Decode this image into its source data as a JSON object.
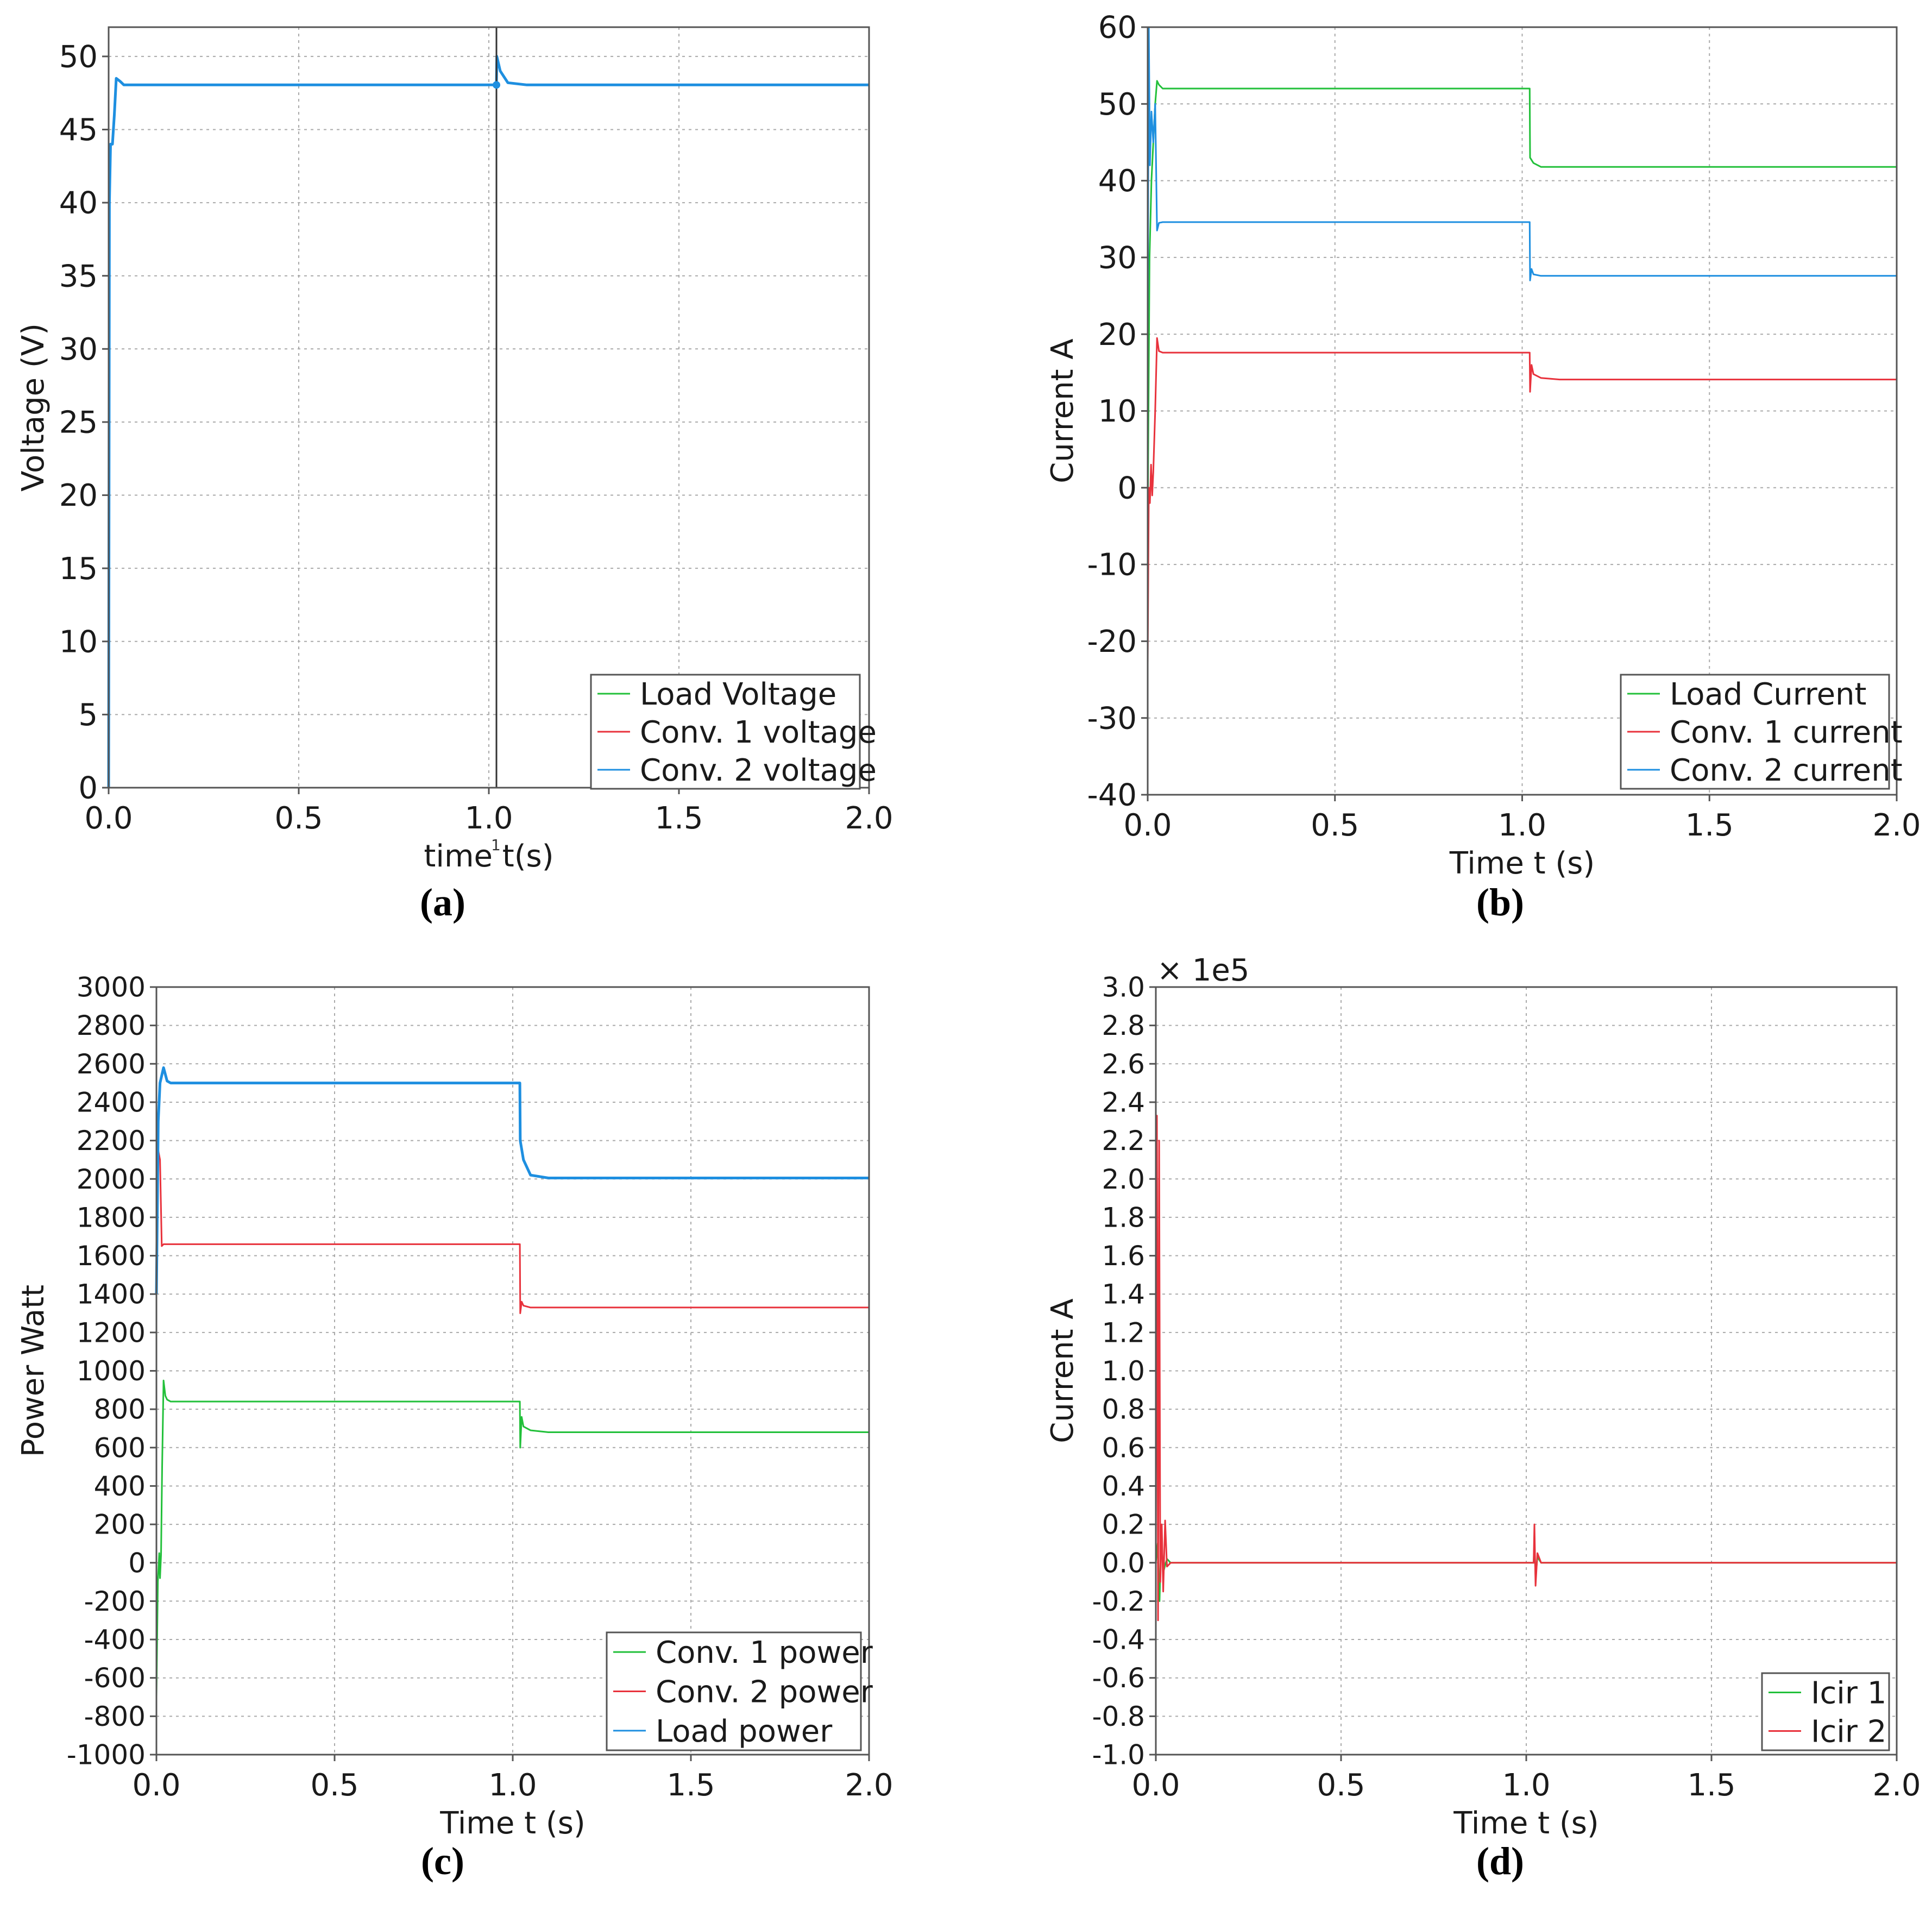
{
  "chart_data": [
    {
      "id": "a",
      "type": "line",
      "caption": "(a)",
      "xlabel": "time t(s)",
      "ylabel": "Voltage (V)",
      "xlim": [
        0,
        2
      ],
      "ylim": [
        0,
        52
      ],
      "xticks": [
        "0.0",
        "0.5",
        "1.0",
        "1.5",
        "2.0"
      ],
      "xtick_values": [
        0,
        0.5,
        1.0,
        1.5,
        2.0
      ],
      "yticks": [
        "0",
        "5",
        "10",
        "15",
        "20",
        "25",
        "30",
        "35",
        "40",
        "45",
        "50"
      ],
      "ytick_values": [
        0,
        5,
        10,
        15,
        20,
        25,
        30,
        35,
        40,
        45,
        50
      ],
      "grid": true,
      "legend_position": "bottom-right",
      "cursor_x": 1.02,
      "cursor_label": "1",
      "series": [
        {
          "name": "Load Voltage",
          "color": "#22c03a",
          "width": 3,
          "points": [
            [
              0,
              0
            ],
            [
              0.002,
              40
            ],
            [
              0.005,
              44
            ],
            [
              0.01,
              44
            ],
            [
              0.015,
              46
            ],
            [
              0.02,
              48.5
            ],
            [
              0.03,
              48.3
            ],
            [
              0.04,
              48.05
            ],
            [
              1.02,
              48.05
            ],
            [
              1.021,
              50
            ],
            [
              1.03,
              49
            ],
            [
              1.05,
              48.2
            ],
            [
              1.1,
              48.05
            ],
            [
              2,
              48.05
            ]
          ]
        },
        {
          "name": "Conv. 1 voltage",
          "color": "#e8323c",
          "width": 3,
          "points": [
            [
              0,
              0
            ],
            [
              0.002,
              40
            ],
            [
              0.005,
              44
            ],
            [
              0.01,
              44
            ],
            [
              0.015,
              46
            ],
            [
              0.02,
              48.5
            ],
            [
              0.03,
              48.3
            ],
            [
              0.04,
              48.05
            ],
            [
              1.02,
              48.05
            ],
            [
              1.021,
              50
            ],
            [
              1.03,
              49
            ],
            [
              1.05,
              48.2
            ],
            [
              1.1,
              48.05
            ],
            [
              2,
              48.05
            ]
          ]
        },
        {
          "name": "Conv. 2 voltage",
          "color": "#1e8fe0",
          "width": 5,
          "points": [
            [
              0,
              0
            ],
            [
              0.002,
              40
            ],
            [
              0.005,
              44
            ],
            [
              0.01,
              44
            ],
            [
              0.015,
              46
            ],
            [
              0.02,
              48.5
            ],
            [
              0.03,
              48.3
            ],
            [
              0.04,
              48.05
            ],
            [
              1.02,
              48.05
            ],
            [
              1.021,
              50
            ],
            [
              1.03,
              49
            ],
            [
              1.05,
              48.2
            ],
            [
              1.1,
              48.05
            ],
            [
              2,
              48.05
            ]
          ]
        }
      ]
    },
    {
      "id": "b",
      "type": "line",
      "caption": "(b)",
      "xlabel": "Time t (s)",
      "ylabel": "Current A",
      "xlim": [
        0,
        2
      ],
      "ylim": [
        -40,
        60
      ],
      "xticks": [
        "0.0",
        "0.5",
        "1.0",
        "1.5",
        "2.0"
      ],
      "xtick_values": [
        0,
        0.5,
        1.0,
        1.5,
        2.0
      ],
      "yticks": [
        "-40",
        "-30",
        "-20",
        "-10",
        "0",
        "10",
        "20",
        "30",
        "40",
        "50",
        "60"
      ],
      "ytick_values": [
        -40,
        -30,
        -20,
        -10,
        0,
        10,
        20,
        30,
        40,
        50,
        60
      ],
      "grid": true,
      "legend_position": "bottom-right",
      "series": [
        {
          "name": "Load Current",
          "color": "#22c03a",
          "width": 3,
          "points": [
            [
              0,
              -5
            ],
            [
              0.005,
              30
            ],
            [
              0.01,
              40
            ],
            [
              0.02,
              50
            ],
            [
              0.025,
              53
            ],
            [
              0.03,
              52.5
            ],
            [
              0.04,
              52
            ],
            [
              1.02,
              52
            ],
            [
              1.021,
              43
            ],
            [
              1.03,
              42.3
            ],
            [
              1.05,
              41.8
            ],
            [
              2,
              41.8
            ]
          ]
        },
        {
          "name": "Conv. 1 current",
          "color": "#e8323c",
          "width": 3,
          "points": [
            [
              0,
              -23
            ],
            [
              0.003,
              0
            ],
            [
              0.006,
              -2
            ],
            [
              0.009,
              3
            ],
            [
              0.012,
              -1
            ],
            [
              0.015,
              2
            ],
            [
              0.02,
              10
            ],
            [
              0.025,
              19.5
            ],
            [
              0.03,
              17.8
            ],
            [
              0.04,
              17.6
            ],
            [
              1.02,
              17.6
            ],
            [
              1.021,
              12.5
            ],
            [
              1.025,
              16
            ],
            [
              1.03,
              14.8
            ],
            [
              1.05,
              14.3
            ],
            [
              1.1,
              14.1
            ],
            [
              2,
              14.1
            ]
          ]
        },
        {
          "name": "Conv. 2 current",
          "color": "#1e8fe0",
          "width": 3,
          "points": [
            [
              0,
              20
            ],
            [
              0.003,
              60
            ],
            [
              0.006,
              42
            ],
            [
              0.01,
              49
            ],
            [
              0.015,
              45
            ],
            [
              0.02,
              50
            ],
            [
              0.025,
              33.5
            ],
            [
              0.03,
              34.5
            ],
            [
              0.04,
              34.6
            ],
            [
              1.02,
              34.6
            ],
            [
              1.021,
              27
            ],
            [
              1.025,
              28.5
            ],
            [
              1.03,
              27.8
            ],
            [
              1.05,
              27.6
            ],
            [
              2,
              27.6
            ]
          ]
        }
      ]
    },
    {
      "id": "c",
      "type": "line",
      "caption": "(c)",
      "xlabel": "Time t (s)",
      "ylabel": "Power Watt",
      "xlim": [
        0,
        2
      ],
      "ylim": [
        -1000,
        3000
      ],
      "xticks": [
        "0.0",
        "0.5",
        "1.0",
        "1.5",
        "2.0"
      ],
      "xtick_values": [
        0,
        0.5,
        1.0,
        1.5,
        2.0
      ],
      "yticks": [
        "-1000",
        "-800",
        "-600",
        "-400",
        "-200",
        "0",
        "200",
        "400",
        "600",
        "800",
        "1000",
        "1200",
        "1400",
        "1600",
        "1800",
        "2000",
        "2200",
        "2400",
        "2600",
        "2800",
        "3000"
      ],
      "ytick_values": [
        -1000,
        -800,
        -600,
        -400,
        -200,
        0,
        200,
        400,
        600,
        800,
        1000,
        1200,
        1400,
        1600,
        1800,
        2000,
        2200,
        2400,
        2600,
        2800,
        3000
      ],
      "grid": true,
      "legend_position": "bottom-right",
      "series": [
        {
          "name": "Conv. 1 power",
          "color": "#22c03a",
          "width": 3,
          "points": [
            [
              0,
              -700
            ],
            [
              0.004,
              -100
            ],
            [
              0.008,
              50
            ],
            [
              0.01,
              -80
            ],
            [
              0.013,
              40
            ],
            [
              0.016,
              500
            ],
            [
              0.02,
              950
            ],
            [
              0.025,
              870
            ],
            [
              0.03,
              850
            ],
            [
              0.04,
              840
            ],
            [
              1.02,
              840
            ],
            [
              1.021,
              600
            ],
            [
              1.025,
              760
            ],
            [
              1.03,
              710
            ],
            [
              1.05,
              690
            ],
            [
              1.1,
              680
            ],
            [
              2,
              680
            ]
          ]
        },
        {
          "name": "Conv. 2 power",
          "color": "#e8323c",
          "width": 3,
          "points": [
            [
              0,
              1700
            ],
            [
              0.005,
              2150
            ],
            [
              0.01,
              2100
            ],
            [
              0.015,
              1650
            ],
            [
              0.02,
              1660
            ],
            [
              0.04,
              1660
            ],
            [
              1.02,
              1660
            ],
            [
              1.021,
              1300
            ],
            [
              1.025,
              1360
            ],
            [
              1.03,
              1340
            ],
            [
              1.05,
              1330
            ],
            [
              2,
              1330
            ]
          ]
        },
        {
          "name": "Load power",
          "color": "#1e8fe0",
          "width": 5,
          "points": [
            [
              0,
              1400
            ],
            [
              0.005,
              2300
            ],
            [
              0.01,
              2500
            ],
            [
              0.02,
              2580
            ],
            [
              0.03,
              2510
            ],
            [
              0.04,
              2500
            ],
            [
              1.02,
              2500
            ],
            [
              1.021,
              2200
            ],
            [
              1.03,
              2100
            ],
            [
              1.05,
              2020
            ],
            [
              1.1,
              2005
            ],
            [
              2,
              2005
            ]
          ]
        }
      ]
    },
    {
      "id": "d",
      "type": "line",
      "caption": "(d)",
      "xlabel": "Time t (s)",
      "ylabel": "Current A",
      "multiplier": "× 1e5",
      "xlim": [
        0,
        2
      ],
      "ylim": [
        -1.0,
        3.0
      ],
      "xticks": [
        "0.0",
        "0.5",
        "1.0",
        "1.5",
        "2.0"
      ],
      "xtick_values": [
        0,
        0.5,
        1.0,
        1.5,
        2.0
      ],
      "yticks": [
        "-1.0",
        "-0.8",
        "-0.6",
        "-0.4",
        "-0.2",
        "0.0",
        "0.2",
        "0.4",
        "0.6",
        "0.8",
        "1.0",
        "1.2",
        "1.4",
        "1.6",
        "1.8",
        "2.0",
        "2.2",
        "2.4",
        "2.6",
        "2.8",
        "3.0"
      ],
      "ytick_values": [
        -1.0,
        -0.8,
        -0.6,
        -0.4,
        -0.2,
        0.0,
        0.2,
        0.4,
        0.6,
        0.8,
        1.0,
        1.2,
        1.4,
        1.6,
        1.8,
        2.0,
        2.2,
        2.4,
        2.6,
        2.8,
        3.0
      ],
      "grid": true,
      "legend_position": "bottom-right",
      "series": [
        {
          "name": "Icir 1",
          "color": "#22c03a",
          "width": 3,
          "points": [
            [
              0,
              0
            ],
            [
              0.005,
              0.1
            ],
            [
              0.01,
              -0.2
            ],
            [
              0.015,
              0.15
            ],
            [
              0.02,
              -0.05
            ],
            [
              0.03,
              0.02
            ],
            [
              0.04,
              0
            ],
            [
              1.02,
              0
            ],
            [
              1.022,
              0.12
            ],
            [
              1.025,
              -0.08
            ],
            [
              1.03,
              0.03
            ],
            [
              1.04,
              0
            ],
            [
              2,
              0
            ]
          ]
        },
        {
          "name": "Icir 2",
          "color": "#e8323c",
          "width": 3,
          "points": [
            [
              0,
              0
            ],
            [
              0.003,
              2.33
            ],
            [
              0.006,
              -0.3
            ],
            [
              0.009,
              2.2
            ],
            [
              0.012,
              -0.1
            ],
            [
              0.016,
              0.2
            ],
            [
              0.02,
              -0.15
            ],
            [
              0.025,
              0.22
            ],
            [
              0.03,
              -0.02
            ],
            [
              0.04,
              0
            ],
            [
              1.02,
              0
            ],
            [
              1.022,
              0.2
            ],
            [
              1.025,
              -0.12
            ],
            [
              1.03,
              0.05
            ],
            [
              1.04,
              0
            ],
            [
              2,
              0
            ]
          ]
        }
      ]
    }
  ]
}
